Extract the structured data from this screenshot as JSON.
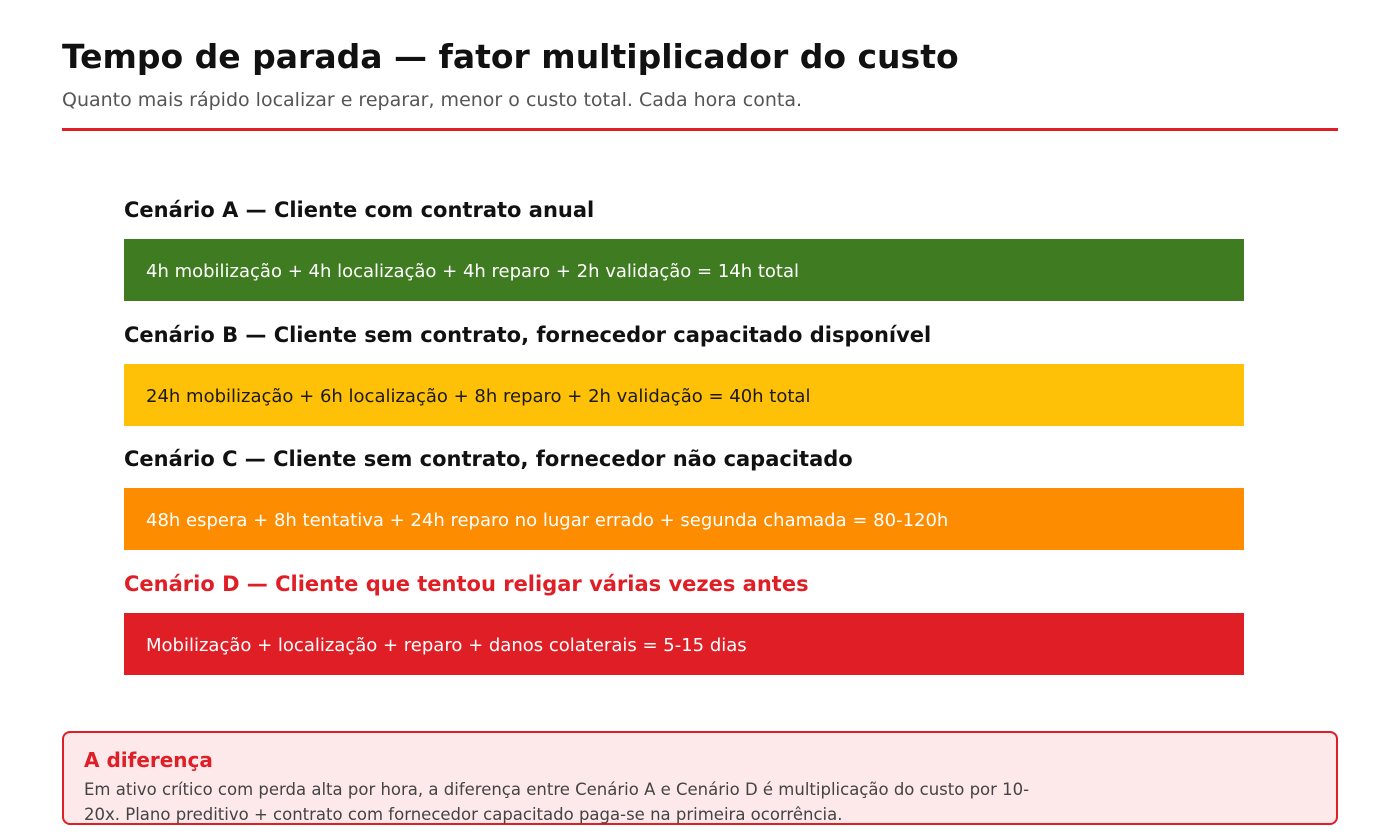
{
  "header": {
    "title": "Tempo de parada — fator multiplicador do custo",
    "subtitle": "Quanto mais rápido localizar e reparar, menor o custo total. Cada hora conta."
  },
  "colors": {
    "accent": "#e01e26",
    "title_text": "#111111",
    "subtitle_text": "#555555"
  },
  "scenarios": [
    {
      "title": "Cenário A — Cliente com contrato anual",
      "detail": "4h mobilização + 4h localização + 4h reparo + 2h validação = 14h total",
      "title_color": "#111111",
      "bar_color": "#3f7b20",
      "text_color": "#ffffff"
    },
    {
      "title": "Cenário B — Cliente sem contrato, fornecedor capacitado disponível",
      "detail": "24h mobilização + 6h localização + 8h reparo + 2h validação = 40h total",
      "title_color": "#111111",
      "bar_color": "#ffc107",
      "text_color": "#1a1a1a"
    },
    {
      "title": "Cenário C — Cliente sem contrato, fornecedor não capacitado",
      "detail": "48h espera + 8h tentativa + 24h reparo no lugar errado + segunda chamada = 80-120h",
      "title_color": "#111111",
      "bar_color": "#fd8c00",
      "text_color": "#ffffff"
    },
    {
      "title": "Cenário D — Cliente que tentou religar várias vezes antes",
      "detail": "Mobilização + localização + reparo + danos colaterais = 5-15 dias",
      "title_color": "#e01e26",
      "bar_color": "#e01e26",
      "text_color": "#ffffff"
    }
  ],
  "callout": {
    "title": "A diferença",
    "body": "Em ativo crítico com perda alta por hora, a diferença entre Cenário A e Cenário D é multiplicação do custo por 10-20x. Plano preditivo + contrato com fornecedor capacitado paga-se na primeira ocorrência."
  }
}
